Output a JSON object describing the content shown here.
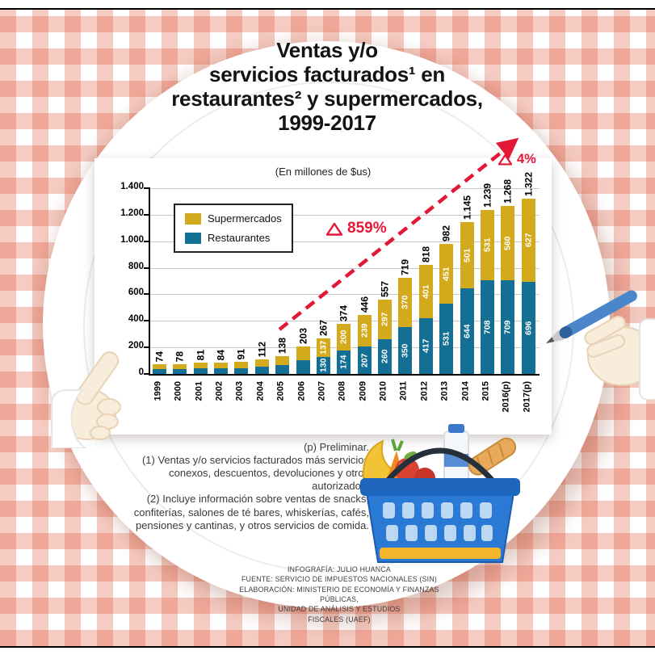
{
  "header": {
    "lines": [
      "Ventas y/o",
      "servicios facturados¹ en",
      "restaurantes² y supermercados,",
      "1999-2017"
    ]
  },
  "chart_data": {
    "type": "bar",
    "stacked": true,
    "subtitle": "(En millones de $us)",
    "categories": [
      "1999",
      "2000",
      "2001",
      "2002",
      "2003",
      "2004",
      "2005",
      "2006",
      "2007",
      "2008",
      "2009",
      "2010",
      "2011",
      "2012",
      "2013",
      "2014",
      "2015",
      "2016(p)",
      "2017(p)"
    ],
    "series": [
      {
        "name": "Restaurantes",
        "color": "#136f93",
        "values": [
          37,
          39,
          40,
          42,
          45,
          56,
          69,
          101,
          130,
          174,
          207,
          260,
          350,
          417,
          531,
          644,
          708,
          709,
          696
        ],
        "labels": [
          "",
          "",
          "",
          "",
          "",
          "",
          "",
          "",
          "130",
          "174",
          "207",
          "260",
          "350",
          "417",
          "531",
          "644",
          "708",
          "709",
          "696"
        ]
      },
      {
        "name": "Supermercados",
        "color": "#d3aa1b",
        "values": [
          37,
          39,
          41,
          42,
          46,
          56,
          69,
          102,
          137,
          200,
          239,
          297,
          370,
          401,
          451,
          501,
          531,
          560,
          627
        ],
        "labels": [
          "",
          "",
          "",
          "",
          "",
          "",
          "",
          "",
          "137",
          "200",
          "239",
          "297",
          "370",
          "401",
          "451",
          "501",
          "531",
          "560",
          "627"
        ]
      }
    ],
    "totals": [
      "74",
      "78",
      "81",
      "84",
      "91",
      "112",
      "138",
      "203",
      "267",
      "374",
      "446",
      "557",
      "719",
      "818",
      "982",
      "1.145",
      "1.239",
      "1.268",
      "1.322"
    ],
    "y_axis": {
      "max": 1400,
      "ticks": [
        {
          "value": 0,
          "label": "0"
        },
        {
          "value": 200,
          "label": "200"
        },
        {
          "value": 400,
          "label": "400"
        },
        {
          "value": 600,
          "label": "600"
        },
        {
          "value": 800,
          "label": "800"
        },
        {
          "value": 1000,
          "label": "1.000"
        },
        {
          "value": 1200,
          "label": "1.200"
        },
        {
          "value": 1400,
          "label": "1.400"
        }
      ]
    },
    "legend": [
      {
        "label": "Supermercados",
        "color": "#d3aa1b"
      },
      {
        "label": "Restaurantes",
        "color": "#136f93"
      }
    ],
    "annotations": {
      "mid": {
        "text": "859%"
      },
      "end": {
        "text": "4%"
      }
    },
    "accent_color": "#e31837",
    "grid": true,
    "legend_position": "upper-left"
  },
  "notes": {
    "p1": "(p) Preliminar.",
    "p2": "(1) Ventas y/o servicios facturados más servicios conexos, descuentos, devoluciones y otros autorizados.",
    "p3": "(2) Incluye información sobre ventas de snacks, confiterías, salones de té bares, whiskerías, cafés, pensiones y cantinas, y otros servicios de comida."
  },
  "credits": {
    "lines": [
      "INFOGRAFÍA: JULIO HUANCA",
      "FUENTE: SERVICIO DE IMPUESTOS NACIONALES (SIN)",
      "ELABORACIÓN: MINISTERIO DE ECONOMÍA Y FINANZAS PÚBLICAS,",
      "UNIDAD DE ANÁLISIS Y ESTUDIOS",
      "FISCALES (UAEF)"
    ]
  }
}
